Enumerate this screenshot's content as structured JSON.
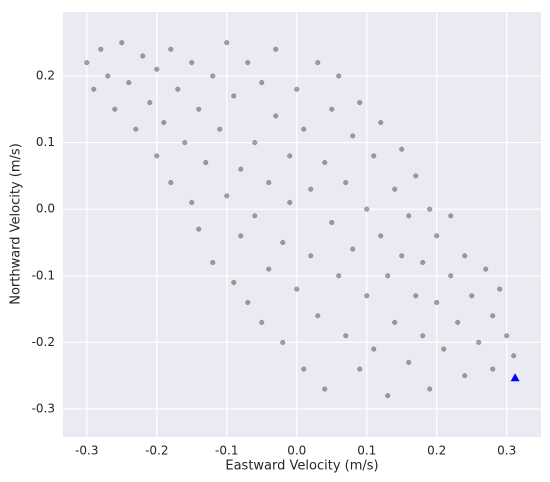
{
  "chart_data": {
    "type": "scatter",
    "xlabel": "Eastward Velocity (m/s)",
    "ylabel": "Northward Velocity (m/s)",
    "xlim": [
      -0.334,
      0.349
    ],
    "ylim": [
      -0.342,
      0.296
    ],
    "xticks": [
      -0.3,
      -0.2,
      -0.1,
      {
        "value": 0,
        "label": "0.0"
      },
      0.1,
      0.2,
      0.3
    ],
    "yticks": [
      -0.3,
      -0.2,
      -0.1,
      {
        "value": 0,
        "label": "0.0"
      },
      0.1,
      0.2
    ],
    "grid": true,
    "series": [
      {
        "color": "#000000",
        "marker": "circle",
        "x": [
          -0.3,
          -0.29,
          -0.28,
          -0.27,
          -0.26,
          -0.25,
          -0.24,
          -0.23,
          -0.22,
          -0.21,
          -0.2,
          -0.2,
          -0.19,
          -0.18,
          -0.18,
          -0.17,
          -0.16,
          -0.15,
          -0.15,
          -0.14,
          -0.14,
          -0.13,
          -0.12,
          -0.12,
          -0.11,
          -0.1,
          -0.1,
          -0.09,
          -0.09,
          -0.08,
          -0.08,
          -0.07,
          -0.07,
          -0.06,
          -0.06,
          -0.05,
          -0.05,
          -0.04,
          -0.04,
          -0.03,
          -0.03,
          -0.02,
          -0.02,
          -0.01,
          -0.01,
          0.0,
          0.0,
          0.01,
          0.01,
          0.02,
          0.02,
          0.03,
          0.03,
          0.04,
          0.04,
          0.05,
          0.05,
          0.06,
          0.06,
          0.07,
          0.07,
          0.08,
          0.08,
          0.09,
          0.09,
          0.1,
          0.1,
          0.11,
          0.11,
          0.12,
          0.12,
          0.13,
          0.13,
          0.14,
          0.14,
          0.15,
          0.15,
          0.16,
          0.16,
          0.17,
          0.17,
          0.18,
          0.18,
          0.19,
          0.19,
          0.2,
          0.2,
          0.21,
          0.22,
          0.22,
          0.23,
          0.24,
          0.24,
          0.25,
          0.26,
          0.27,
          0.28,
          0.28,
          0.29,
          0.3,
          0.31
        ],
        "values": [
          0.22,
          0.18,
          0.24,
          0.2,
          0.15,
          0.25,
          0.19,
          0.12,
          0.23,
          0.16,
          0.08,
          0.21,
          0.13,
          0.04,
          0.24,
          0.18,
          0.1,
          0.01,
          0.22,
          0.15,
          -0.03,
          0.07,
          0.2,
          -0.08,
          0.12,
          0.02,
          0.25,
          -0.11,
          0.17,
          0.06,
          -0.04,
          0.22,
          -0.14,
          0.1,
          -0.01,
          0.19,
          -0.17,
          0.04,
          -0.09,
          0.14,
          0.24,
          -0.05,
          -0.2,
          0.08,
          0.01,
          0.18,
          -0.12,
          -0.24,
          0.12,
          0.03,
          -0.07,
          0.22,
          -0.16,
          0.07,
          -0.27,
          -0.02,
          0.15,
          -0.1,
          0.2,
          -0.19,
          0.04,
          0.11,
          -0.06,
          -0.24,
          0.16,
          0.0,
          -0.13,
          0.08,
          -0.21,
          -0.04,
          0.13,
          -0.28,
          -0.1,
          0.03,
          -0.17,
          -0.07,
          0.09,
          -0.23,
          -0.01,
          -0.13,
          0.05,
          -0.19,
          -0.08,
          -0.27,
          0.0,
          -0.14,
          -0.04,
          -0.21,
          -0.1,
          -0.01,
          -0.17,
          -0.25,
          -0.07,
          -0.13,
          -0.2,
          -0.09,
          -0.16,
          -0.24,
          -0.12,
          -0.19,
          -0.22
        ]
      },
      {
        "color": "#0000ff",
        "marker": "triangle",
        "x": [
          0.312
        ],
        "values": [
          -0.253
        ]
      }
    ]
  }
}
